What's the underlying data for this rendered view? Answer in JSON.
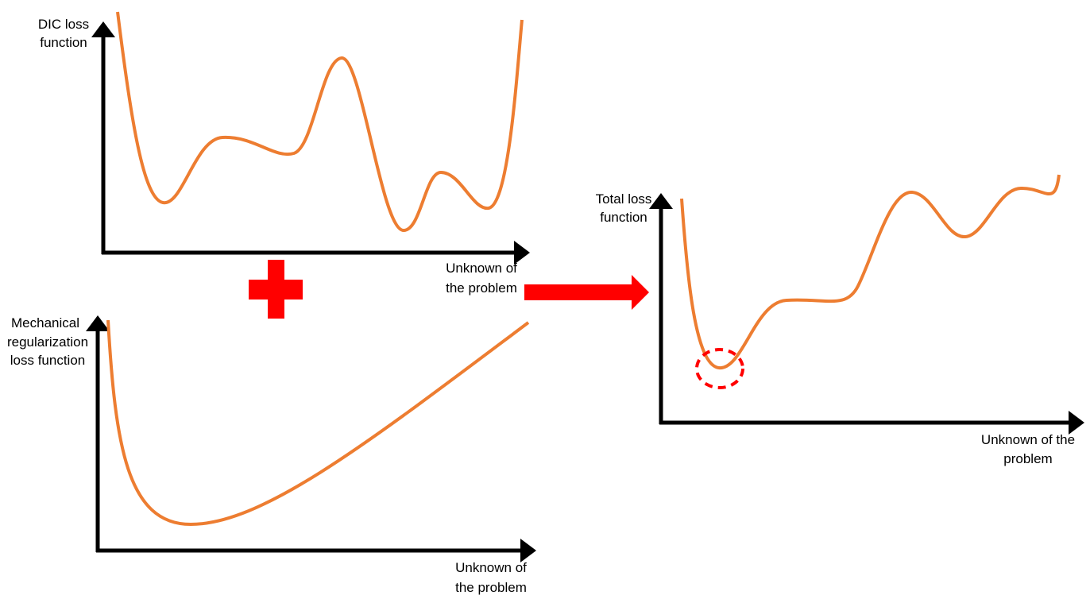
{
  "colors": {
    "curve": "#ED7D31",
    "operator": "#FF0000",
    "axis": "#000000",
    "highlight": "#FF0000"
  },
  "top_plot": {
    "ylabel": [
      "DIC loss",
      "function"
    ],
    "xlabel": [
      "Unknown of",
      "the problem"
    ]
  },
  "bottom_plot": {
    "ylabel": [
      "Mechanical",
      "regularization",
      "loss function"
    ],
    "xlabel": [
      "Unknown of",
      "the problem"
    ]
  },
  "result_plot": {
    "ylabel": [
      "Total loss",
      "function"
    ],
    "xlabel": [
      "Unknown of the",
      "problem"
    ]
  },
  "operators": {
    "plus": "plus-icon",
    "arrow": "arrow-right-icon"
  }
}
